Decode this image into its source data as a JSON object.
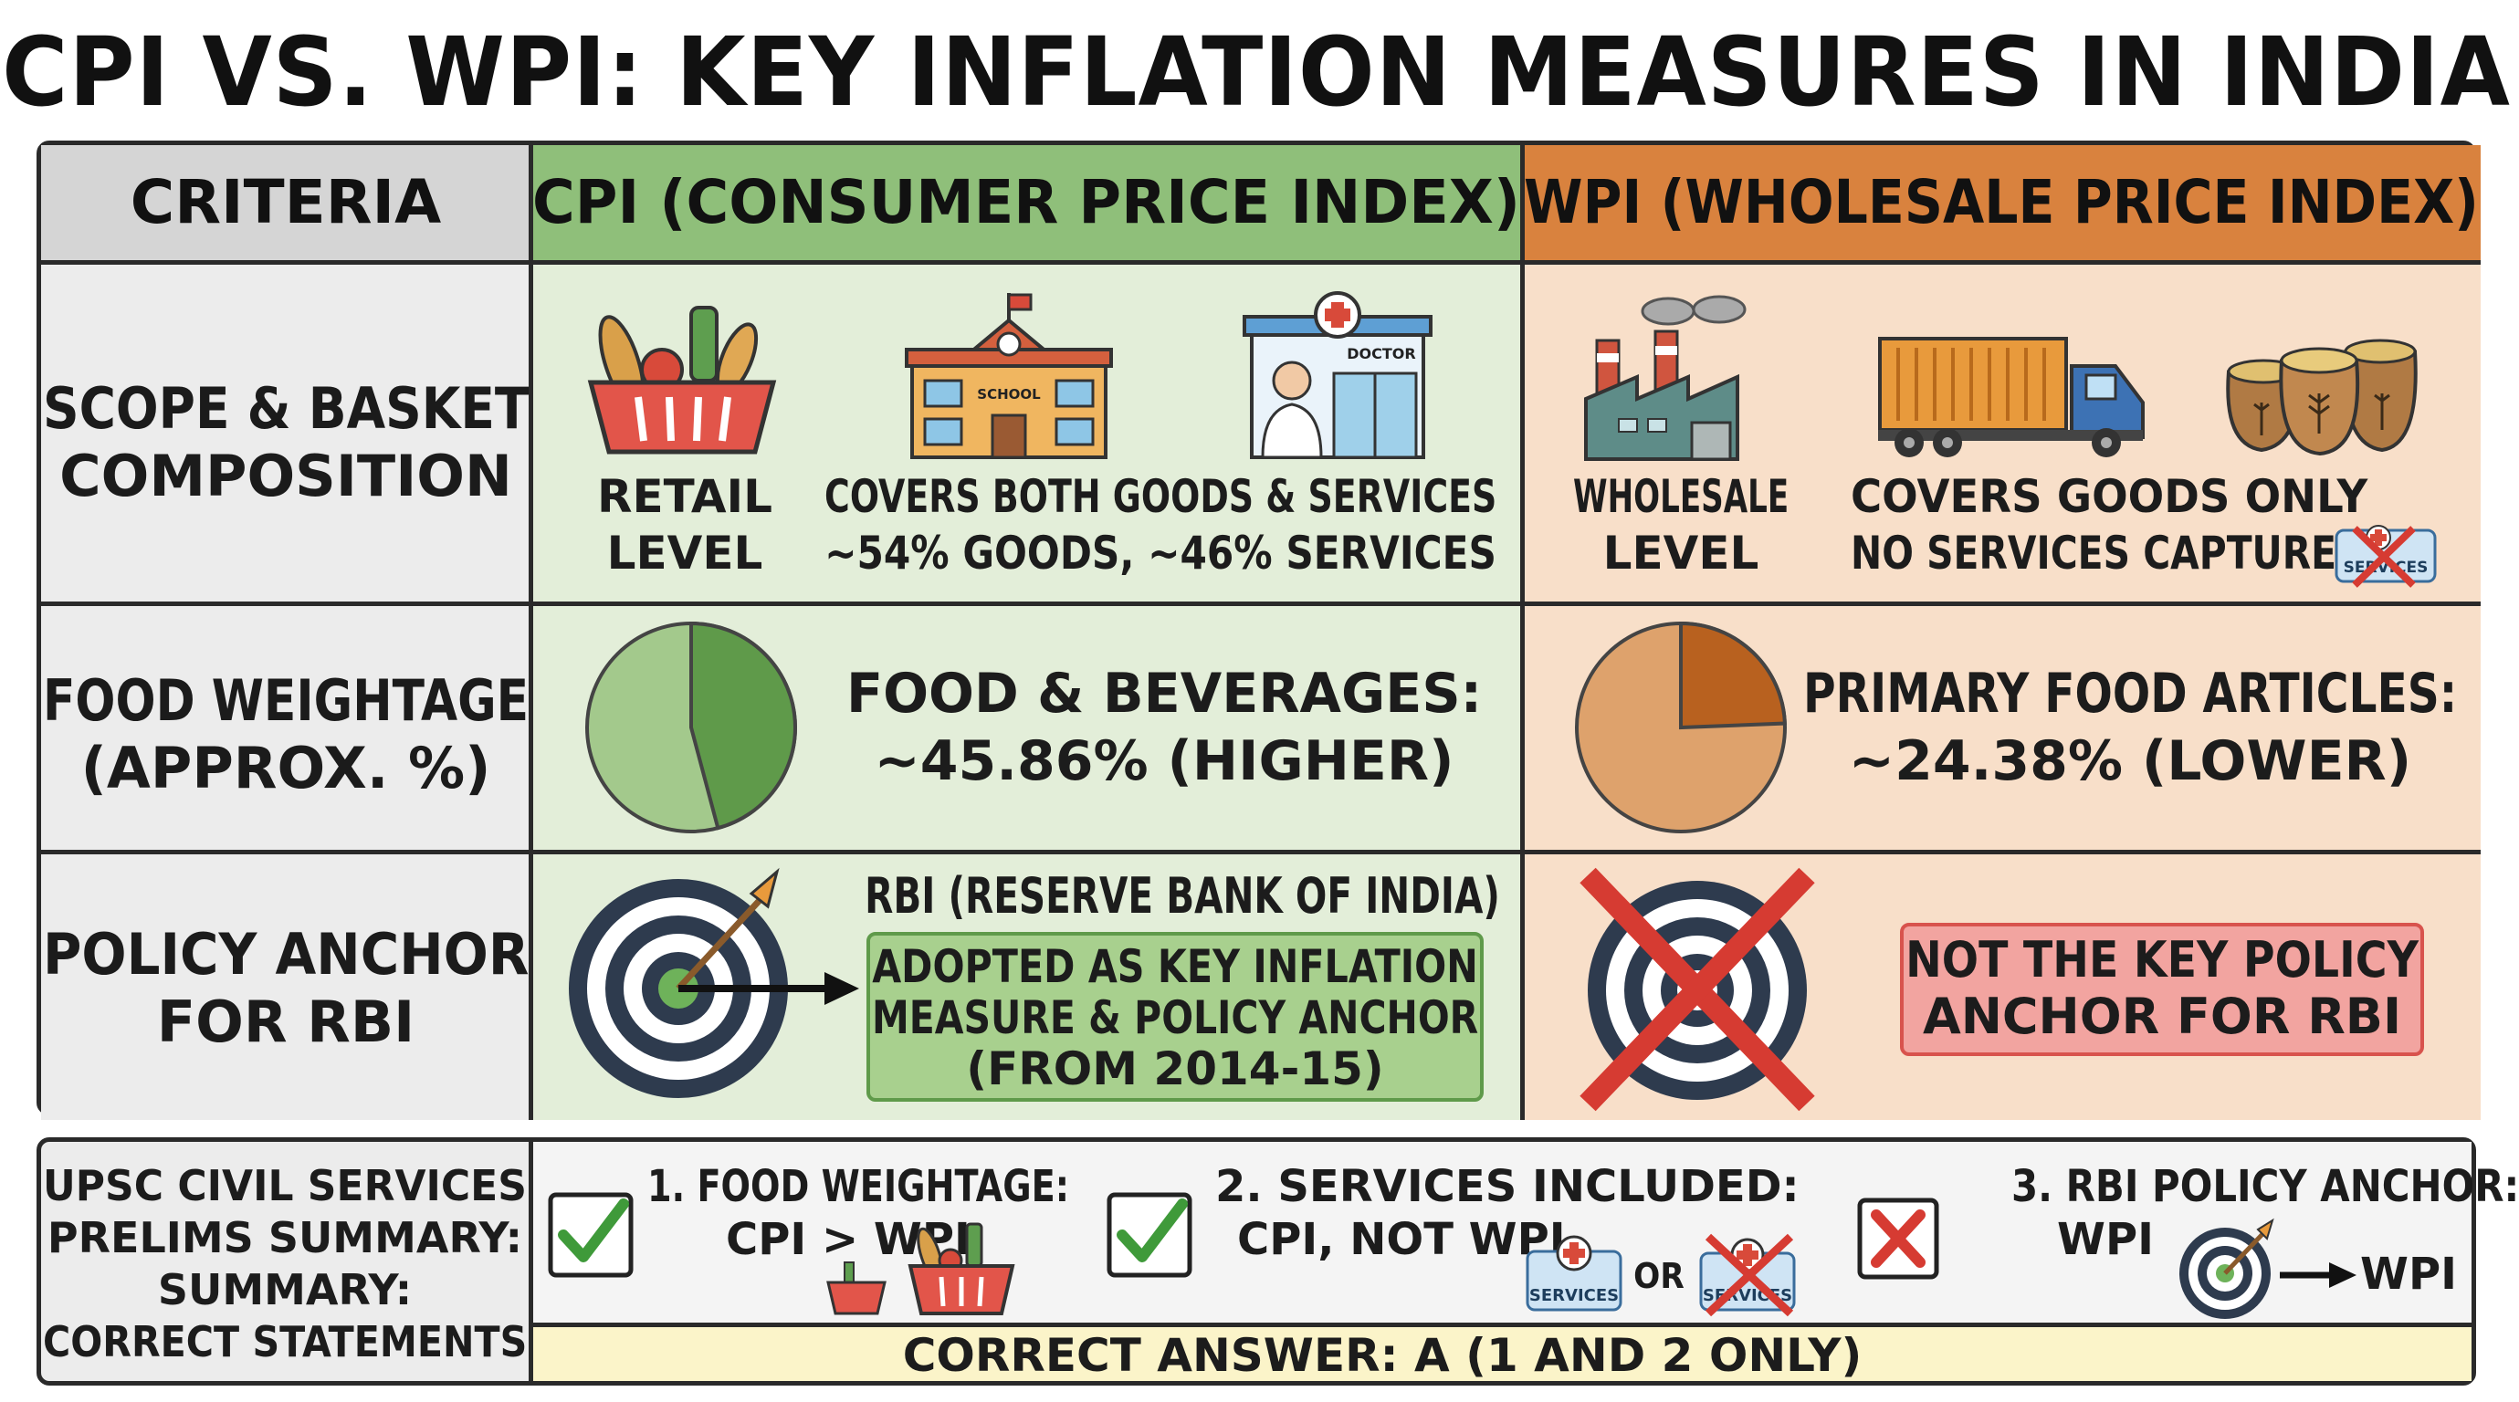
{
  "title": "CPI VS. WPI: KEY INFLATION MEASURES IN INDIA",
  "colors": {
    "cpi_header": "#8fbf7a",
    "cpi_body": "#e3eed9",
    "wpi_header": "#d9823e",
    "wpi_body": "#f8dfc9",
    "criteria_header": "#d5d5d5",
    "criteria_body": "#ececec",
    "answer_bar": "#fbf4c9"
  },
  "headers": {
    "criteria": "CRITERIA",
    "cpi": "CPI (CONSUMER PRICE INDEX)",
    "wpi": "WPI (WHOLESALE PRICE INDEX)"
  },
  "rows": {
    "scope": {
      "criteria_line1": "SCOPE & BASKET",
      "criteria_line2": "COMPOSITION",
      "cpi_level_1": "RETAIL",
      "cpi_level_2": "LEVEL",
      "cpi_cover_1": "COVERS BOTH GOODS & SERVICES",
      "cpi_cover_2": "~54% GOODS, ~46% SERVICES",
      "school_sign": "SCHOOL",
      "doctor_sign": "DOCTOR",
      "wpi_level_1": "WHOLESALE",
      "wpi_level_2": "LEVEL",
      "wpi_cover_1": "COVERS GOODS ONLY",
      "wpi_cover_2": "NO SERVICES CAPTURED",
      "services_badge": "SERVICES"
    },
    "food": {
      "criteria_line1": "FOOD WEIGHTAGE",
      "criteria_line2": "(APPROX. %)",
      "cpi_line1": "FOOD & BEVERAGES:",
      "cpi_line2": "~45.86% (HIGHER)",
      "cpi_food_share": 45.86,
      "wpi_line1": "PRIMARY FOOD ARTICLES:",
      "wpi_line2": "~24.38% (LOWER)",
      "wpi_food_share": 24.38
    },
    "policy": {
      "criteria_line1": "POLICY ANCHOR",
      "criteria_line2": "FOR RBI",
      "cpi_title": "RBI (RESERVE BANK OF INDIA)",
      "cpi_box_1": "ADOPTED AS KEY INFLATION",
      "cpi_box_2": "MEASURE & POLICY ANCHOR",
      "cpi_box_3": "(FROM 2014-15)",
      "wpi_box_1": "NOT THE KEY POLICY",
      "wpi_box_2": "ANCHOR FOR RBI"
    }
  },
  "summary": {
    "label_1": "UPSC CIVIL SERVICES",
    "label_2": "PRELIMS SUMMARY:",
    "label_3": "SUMMARY:",
    "label_4": "CORRECT STATEMENTS",
    "s1_line1": "1. FOOD WEIGHTAGE:",
    "s1_line2": "CPI > WPI",
    "s2_line1": "2. SERVICES INCLUDED:",
    "s2_line2": "CPI, NOT WPI",
    "s2_badge": "SERVICES",
    "s2_or": "OR",
    "s2_badge_crossed": "SERVICES",
    "s3_line1": "3. RBI POLICY ANCHOR:",
    "s3_line2": "WPI",
    "s3_arrow_label": "WPI",
    "answer": "CORRECT ANSWER: A (1 AND 2 ONLY)"
  }
}
